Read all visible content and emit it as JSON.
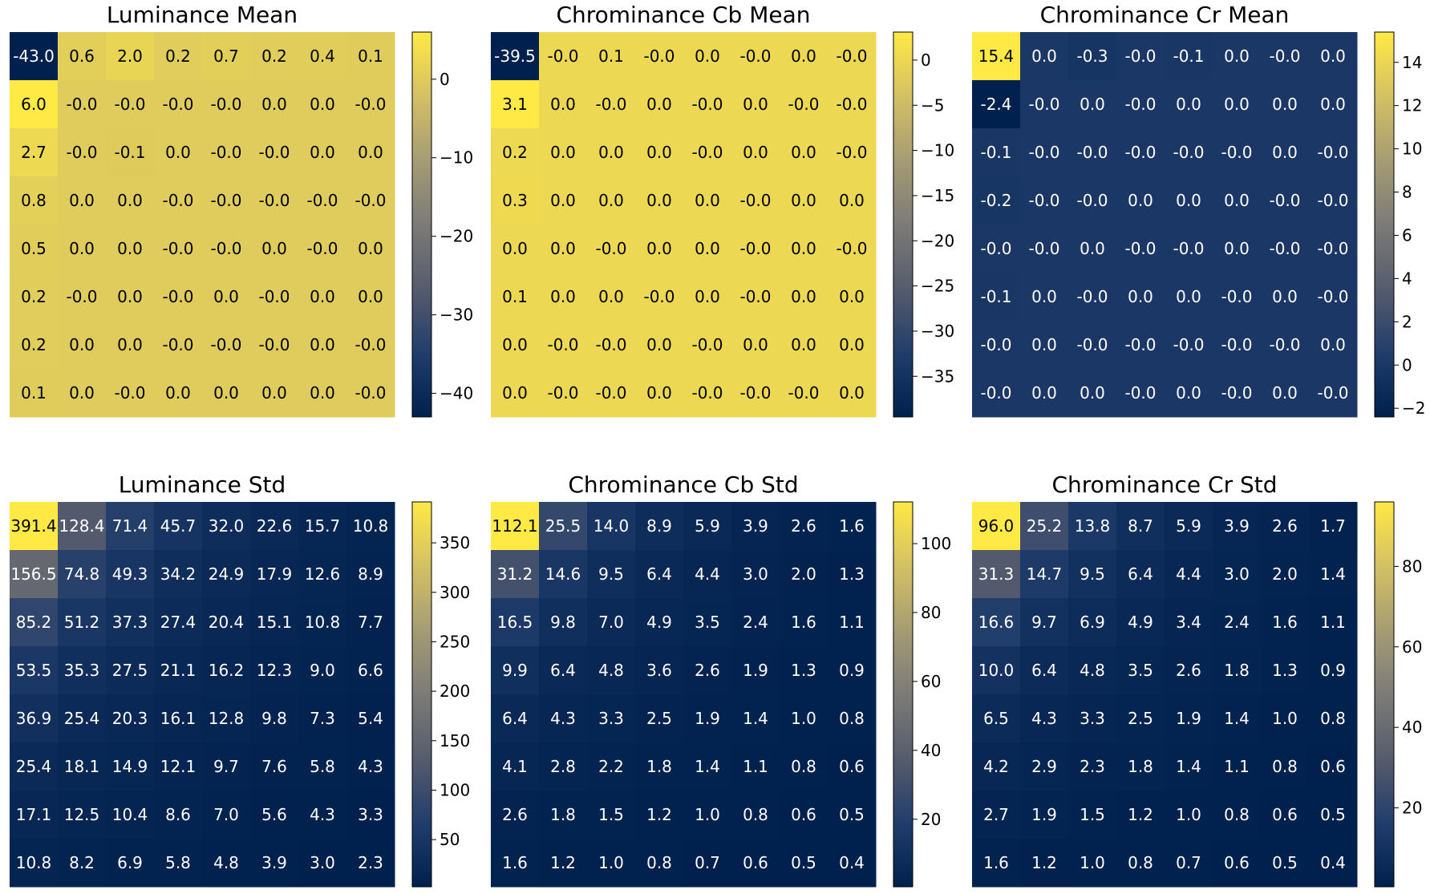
{
  "colormap": [
    "#00204d",
    "#213d6b",
    "#575c6d",
    "#7c7b78",
    "#a59c74",
    "#d3c164",
    "#ffe945"
  ],
  "chart_data": [
    {
      "type": "heatmap",
      "title": "Luminance Mean",
      "vmin": -43.0,
      "vmax": 6.0,
      "colorbar_ticks": [
        0,
        -10,
        -20,
        -30,
        -40
      ],
      "tick_labels": [
        "0",
        "−10",
        "−20",
        "−30",
        "−40"
      ],
      "values": [
        [
          -43.0,
          0.6,
          2.0,
          0.2,
          0.7,
          0.2,
          0.4,
          0.1
        ],
        [
          6.0,
          -0.0,
          -0.0,
          -0.0,
          -0.0,
          0.0,
          0.0,
          -0.0
        ],
        [
          2.7,
          -0.0,
          -0.1,
          0.0,
          -0.0,
          -0.0,
          0.0,
          0.0
        ],
        [
          0.8,
          0.0,
          0.0,
          -0.0,
          -0.0,
          -0.0,
          -0.0,
          -0.0
        ],
        [
          0.5,
          0.0,
          0.0,
          -0.0,
          -0.0,
          0.0,
          -0.0,
          0.0
        ],
        [
          0.2,
          -0.0,
          0.0,
          -0.0,
          0.0,
          -0.0,
          0.0,
          0.0
        ],
        [
          0.2,
          0.0,
          0.0,
          -0.0,
          -0.0,
          -0.0,
          0.0,
          -0.0
        ],
        [
          0.1,
          0.0,
          -0.0,
          0.0,
          0.0,
          0.0,
          0.0,
          -0.0
        ]
      ]
    },
    {
      "type": "heatmap",
      "title": "Chrominance Cb Mean",
      "vmin": -39.5,
      "vmax": 3.1,
      "colorbar_ticks": [
        0,
        -5,
        -10,
        -15,
        -20,
        -25,
        -30,
        -35
      ],
      "tick_labels": [
        "0",
        "−5",
        "−10",
        "−15",
        "−20",
        "−25",
        "−30",
        "−35"
      ],
      "values": [
        [
          -39.5,
          -0.0,
          0.1,
          -0.0,
          0.0,
          -0.0,
          0.0,
          -0.0
        ],
        [
          3.1,
          0.0,
          -0.0,
          0.0,
          -0.0,
          0.0,
          -0.0,
          -0.0
        ],
        [
          0.2,
          0.0,
          0.0,
          0.0,
          -0.0,
          0.0,
          0.0,
          -0.0
        ],
        [
          0.3,
          0.0,
          0.0,
          0.0,
          0.0,
          -0.0,
          0.0,
          0.0
        ],
        [
          0.0,
          0.0,
          -0.0,
          0.0,
          0.0,
          -0.0,
          0.0,
          -0.0
        ],
        [
          0.1,
          0.0,
          0.0,
          -0.0,
          0.0,
          -0.0,
          0.0,
          0.0
        ],
        [
          0.0,
          -0.0,
          -0.0,
          0.0,
          -0.0,
          0.0,
          0.0,
          0.0
        ],
        [
          0.0,
          -0.0,
          -0.0,
          0.0,
          -0.0,
          -0.0,
          -0.0,
          0.0
        ]
      ]
    },
    {
      "type": "heatmap",
      "title": "Chrominance Cr Mean",
      "vmin": -2.4,
      "vmax": 15.4,
      "colorbar_ticks": [
        14,
        12,
        10,
        8,
        6,
        4,
        2,
        0,
        -2
      ],
      "tick_labels": [
        "14",
        "12",
        "10",
        "8",
        "6",
        "4",
        "2",
        "0",
        "−2"
      ],
      "values": [
        [
          15.4,
          0.0,
          -0.3,
          -0.0,
          -0.1,
          0.0,
          -0.0,
          0.0
        ],
        [
          -2.4,
          -0.0,
          0.0,
          -0.0,
          0.0,
          0.0,
          0.0,
          0.0
        ],
        [
          -0.1,
          -0.0,
          -0.0,
          -0.0,
          -0.0,
          -0.0,
          0.0,
          -0.0
        ],
        [
          -0.2,
          -0.0,
          -0.0,
          0.0,
          0.0,
          0.0,
          -0.0,
          -0.0
        ],
        [
          -0.0,
          -0.0,
          0.0,
          -0.0,
          -0.0,
          0.0,
          -0.0,
          -0.0
        ],
        [
          -0.1,
          0.0,
          -0.0,
          0.0,
          0.0,
          -0.0,
          0.0,
          -0.0
        ],
        [
          -0.0,
          0.0,
          -0.0,
          -0.0,
          -0.0,
          -0.0,
          -0.0,
          0.0
        ],
        [
          -0.0,
          0.0,
          0.0,
          -0.0,
          0.0,
          -0.0,
          0.0,
          -0.0
        ]
      ]
    },
    {
      "type": "heatmap",
      "title": "Luminance Std",
      "vmin": 2.3,
      "vmax": 391.4,
      "colorbar_ticks": [
        350,
        300,
        250,
        200,
        150,
        100,
        50
      ],
      "tick_labels": [
        "350",
        "300",
        "250",
        "200",
        "150",
        "100",
        "50"
      ],
      "values": [
        [
          391.4,
          128.4,
          71.4,
          45.7,
          32.0,
          22.6,
          15.7,
          10.8
        ],
        [
          156.5,
          74.8,
          49.3,
          34.2,
          24.9,
          17.9,
          12.6,
          8.9
        ],
        [
          85.2,
          51.2,
          37.3,
          27.4,
          20.4,
          15.1,
          10.8,
          7.7
        ],
        [
          53.5,
          35.3,
          27.5,
          21.1,
          16.2,
          12.3,
          9.0,
          6.6
        ],
        [
          36.9,
          25.4,
          20.3,
          16.1,
          12.8,
          9.8,
          7.3,
          5.4
        ],
        [
          25.4,
          18.1,
          14.9,
          12.1,
          9.7,
          7.6,
          5.8,
          4.3
        ],
        [
          17.1,
          12.5,
          10.4,
          8.6,
          7.0,
          5.6,
          4.3,
          3.3
        ],
        [
          10.8,
          8.2,
          6.9,
          5.8,
          4.8,
          3.9,
          3.0,
          2.3
        ]
      ]
    },
    {
      "type": "heatmap",
      "title": "Chrominance Cb Std",
      "vmin": 0.4,
      "vmax": 112.1,
      "colorbar_ticks": [
        100,
        80,
        60,
        40,
        20
      ],
      "tick_labels": [
        "100",
        "80",
        "60",
        "40",
        "20"
      ],
      "values": [
        [
          112.1,
          25.5,
          14.0,
          8.9,
          5.9,
          3.9,
          2.6,
          1.6
        ],
        [
          31.2,
          14.6,
          9.5,
          6.4,
          4.4,
          3.0,
          2.0,
          1.3
        ],
        [
          16.5,
          9.8,
          7.0,
          4.9,
          3.5,
          2.4,
          1.6,
          1.1
        ],
        [
          9.9,
          6.4,
          4.8,
          3.6,
          2.6,
          1.9,
          1.3,
          0.9
        ],
        [
          6.4,
          4.3,
          3.3,
          2.5,
          1.9,
          1.4,
          1.0,
          0.8
        ],
        [
          4.1,
          2.8,
          2.2,
          1.8,
          1.4,
          1.1,
          0.8,
          0.6
        ],
        [
          2.6,
          1.8,
          1.5,
          1.2,
          1.0,
          0.8,
          0.6,
          0.5
        ],
        [
          1.6,
          1.2,
          1.0,
          0.8,
          0.7,
          0.6,
          0.5,
          0.4
        ]
      ]
    },
    {
      "type": "heatmap",
      "title": "Chrominance Cr Std",
      "vmin": 0.4,
      "vmax": 96.0,
      "colorbar_ticks": [
        80,
        60,
        40,
        20
      ],
      "tick_labels": [
        "80",
        "60",
        "40",
        "20"
      ],
      "values": [
        [
          96.0,
          25.2,
          13.8,
          8.7,
          5.9,
          3.9,
          2.6,
          1.7
        ],
        [
          31.3,
          14.7,
          9.5,
          6.4,
          4.4,
          3.0,
          2.0,
          1.4
        ],
        [
          16.6,
          9.7,
          6.9,
          4.9,
          3.4,
          2.4,
          1.6,
          1.1
        ],
        [
          10.0,
          6.4,
          4.8,
          3.5,
          2.6,
          1.8,
          1.3,
          0.9
        ],
        [
          6.5,
          4.3,
          3.3,
          2.5,
          1.9,
          1.4,
          1.0,
          0.8
        ],
        [
          4.2,
          2.9,
          2.3,
          1.8,
          1.4,
          1.1,
          0.8,
          0.6
        ],
        [
          2.7,
          1.9,
          1.5,
          1.2,
          1.0,
          0.8,
          0.6,
          0.5
        ],
        [
          1.6,
          1.2,
          1.0,
          0.8,
          0.7,
          0.6,
          0.5,
          0.4
        ]
      ]
    }
  ]
}
